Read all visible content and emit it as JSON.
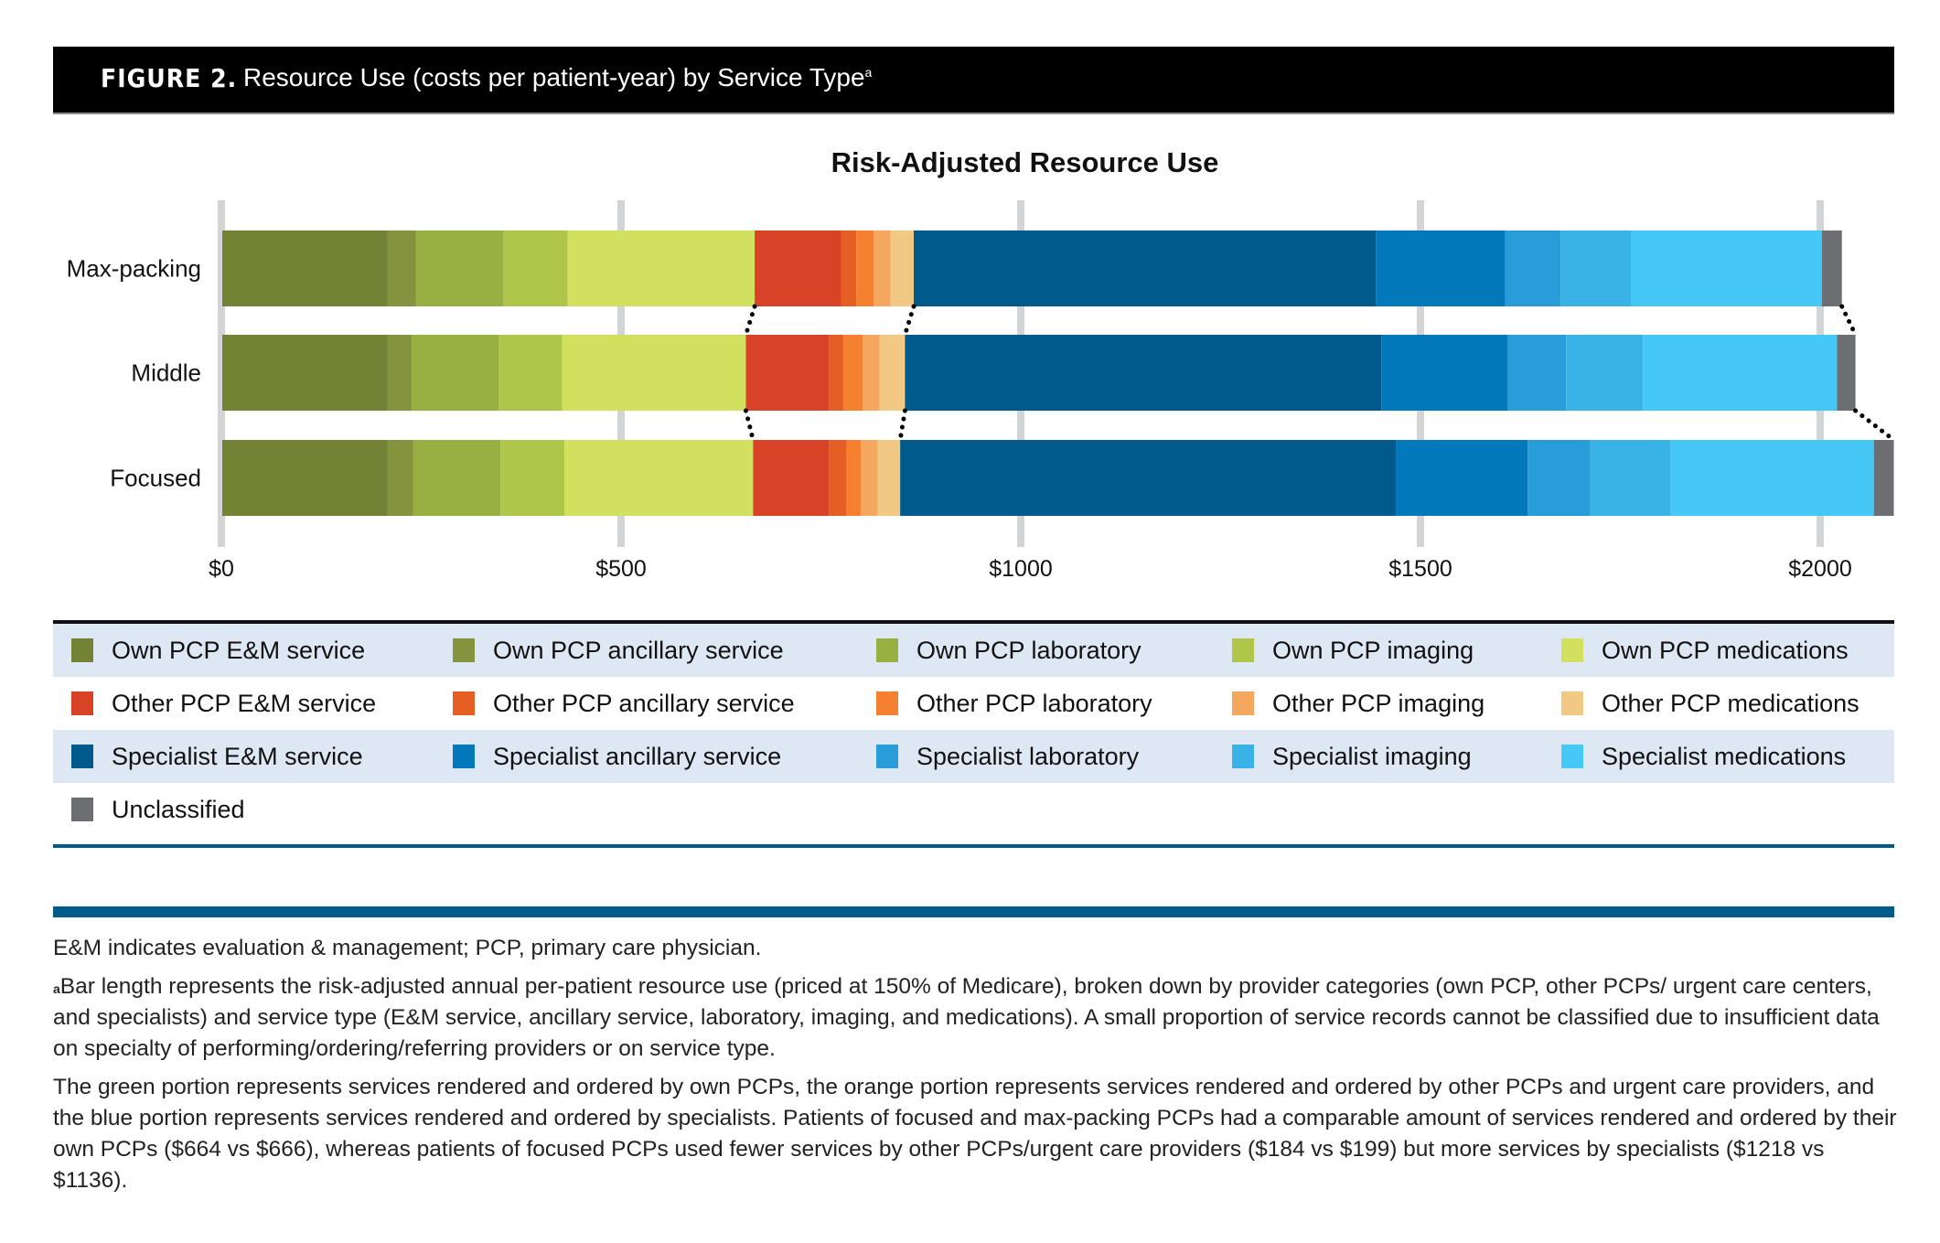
{
  "header": {
    "figure_label": "FIGURE 2.",
    "caption": "Resource Use (costs per patient-year) by Service Type",
    "caption_superscript": "a"
  },
  "chart_data": {
    "type": "bar",
    "orientation": "horizontal",
    "stacked": true,
    "title": "Risk-Adjusted Resource Use",
    "xlabel": "",
    "ylabel": "",
    "xlim": [
      0,
      2100
    ],
    "x_ticks": [
      0,
      500,
      1000,
      1500,
      2000
    ],
    "x_tick_labels": [
      "$0",
      "$500",
      "$1000",
      "$1500",
      "$2000"
    ],
    "grid": "vertical",
    "categories": [
      "Max-packing",
      "Middle",
      "Focused"
    ],
    "connectors": "dotted lines link own-PCP total, other-PCP total and overall total between adjacent bars",
    "series": [
      {
        "name": "Own PCP E&M service",
        "color": "#748236",
        "values": [
          207,
          207,
          207
        ]
      },
      {
        "name": "Own PCP ancillary service",
        "color": "#85933f",
        "values": [
          35,
          30,
          32
        ]
      },
      {
        "name": "Own PCP laboratory",
        "color": "#98b042",
        "values": [
          110,
          109,
          109
        ]
      },
      {
        "name": "Own PCP imaging",
        "color": "#afc64b",
        "values": [
          80,
          79,
          80
        ]
      },
      {
        "name": "Own PCP medications",
        "color": "#d1e05e",
        "values": [
          234,
          230,
          236
        ]
      },
      {
        "name": "Other PCP E&M service",
        "color": "#d84227",
        "values": [
          108,
          104,
          95
        ]
      },
      {
        "name": "Other PCP ancillary service",
        "color": "#e55f25",
        "values": [
          19,
          18,
          22
        ]
      },
      {
        "name": "Other PCP laboratory",
        "color": "#f5802f",
        "values": [
          22,
          24,
          18
        ]
      },
      {
        "name": "Other PCP imaging",
        "color": "#f4a75e",
        "values": [
          21,
          21,
          21
        ]
      },
      {
        "name": "Other PCP medications",
        "color": "#f1c985",
        "values": [
          29,
          32,
          28
        ]
      },
      {
        "name": "Specialist E&M service",
        "color": "#005a8c",
        "values": [
          578,
          596,
          620
        ]
      },
      {
        "name": "Specialist ancillary service",
        "color": "#0379bb",
        "values": [
          162,
          158,
          165
        ]
      },
      {
        "name": "Specialist laboratory",
        "color": "#289dd9",
        "values": [
          69,
          73,
          78
        ]
      },
      {
        "name": "Specialist imaging",
        "color": "#39b2e6",
        "values": [
          88,
          96,
          101
        ]
      },
      {
        "name": "Specialist medications",
        "color": "#45c8f5",
        "values": [
          239,
          243,
          254
        ]
      },
      {
        "name": "Unclassified",
        "color": "#6d6e71",
        "values": [
          25,
          23,
          25
        ]
      }
    ],
    "group_totals": {
      "own_pcp": {
        "Max-packing": 666,
        "Focused": 664
      },
      "other_pcp": {
        "Max-packing": 199,
        "Focused": 184
      },
      "specialists": {
        "Max-packing": 1136,
        "Focused": 1218
      }
    },
    "legend_position": "bottom"
  },
  "notes": {
    "abbrev": "E&M indicates evaluation & management; PCP, primary care physician.",
    "footnote_marker": "a",
    "footnote": "Bar length represents the risk-adjusted annual per-patient resource use (priced at 150% of Medicare), broken down by provider categories (own PCP, other PCPs/ urgent care centers, and specialists) and service type (E&M service, ancillary service, laboratory, imaging, and medications). A small proportion of service records cannot be classified due to insufficient data on specialty of performing/ordering/referring providers or on service type.",
    "summary": "The green portion represents services rendered and ordered by own PCPs, the orange portion represents services rendered and ordered by other PCPs and urgent care providers, and the blue portion represents services rendered and ordered by specialists. Patients of focused and max-packing PCPs had a comparable amount of services rendered and ordered by their own PCPs ($664 vs $666), whereas patients of focused PCPs used fewer services by other PCPs/urgent care providers ($184 vs $199) but more services by specialists ($1218 vs $1136)."
  }
}
